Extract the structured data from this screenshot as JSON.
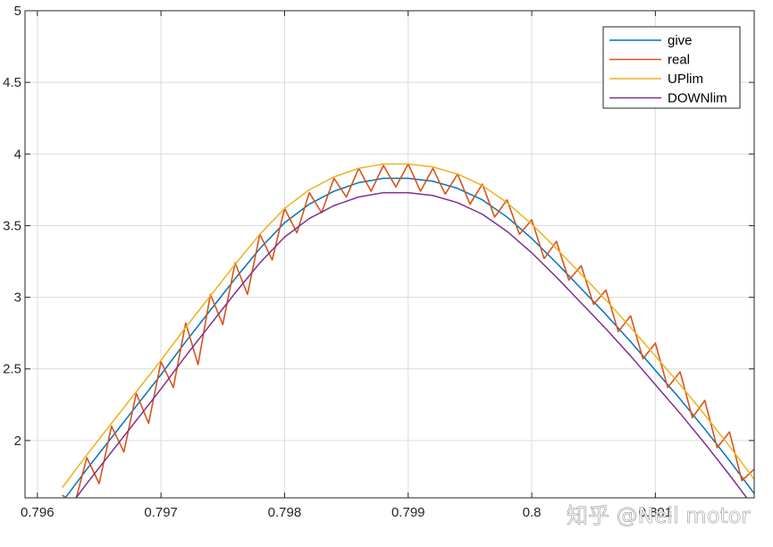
{
  "chart_data": {
    "type": "line",
    "title": "",
    "xlabel": "",
    "ylabel": "",
    "xlim": [
      0.7959,
      0.8018
    ],
    "ylim": [
      1.6,
      5
    ],
    "grid": true,
    "legend_position": "top-right",
    "xticks": [
      0.796,
      0.797,
      0.798,
      0.799,
      0.8,
      0.801
    ],
    "xtick_labels": [
      "0.796",
      "0.797",
      "0.798",
      "0.799",
      "0.8",
      "0.801"
    ],
    "yticks": [
      2,
      2.5,
      3,
      3.5,
      4,
      4.5,
      5
    ],
    "ytick_labels": [
      "2",
      "2.5",
      "3",
      "3.5",
      "4",
      "4.5",
      "5"
    ],
    "series": [
      {
        "name": "give",
        "color": "#0072BD",
        "x": [
          0.7962,
          0.7964,
          0.7966,
          0.7968,
          0.797,
          0.7972,
          0.7974,
          0.7976,
          0.7978,
          0.798,
          0.7982,
          0.7984,
          0.7986,
          0.7988,
          0.799,
          0.7992,
          0.7994,
          0.7996,
          0.7998,
          0.8,
          0.8002,
          0.8004,
          0.8006,
          0.8008,
          0.801,
          0.8012,
          0.8014,
          0.8016,
          0.8018
        ],
        "y": [
          1.57,
          1.8,
          2.02,
          2.24,
          2.46,
          2.69,
          2.91,
          3.13,
          3.34,
          3.52,
          3.65,
          3.74,
          3.8,
          3.83,
          3.83,
          3.81,
          3.76,
          3.68,
          3.56,
          3.41,
          3.24,
          3.06,
          2.88,
          2.69,
          2.49,
          2.29,
          2.08,
          1.86,
          1.63
        ]
      },
      {
        "name": "real",
        "color": "#D95319",
        "x": [
          0.7962,
          0.7963,
          0.7964,
          0.7965,
          0.7966,
          0.7967,
          0.7968,
          0.7969,
          0.797,
          0.7971,
          0.7972,
          0.7973,
          0.7974,
          0.7975,
          0.7976,
          0.7977,
          0.7978,
          0.7979,
          0.798,
          0.7981,
          0.7982,
          0.7983,
          0.7984,
          0.7985,
          0.7986,
          0.7987,
          0.7988,
          0.7989,
          0.799,
          0.7991,
          0.7992,
          0.7993,
          0.7994,
          0.7995,
          0.7996,
          0.7997,
          0.7998,
          0.7999,
          0.8,
          0.8001,
          0.8002,
          0.8003,
          0.8004,
          0.8005,
          0.8006,
          0.8007,
          0.8008,
          0.8009,
          0.801,
          0.8011,
          0.8012,
          0.8013,
          0.8014,
          0.8015,
          0.8016,
          0.8017,
          0.8018
        ],
        "y": [
          1.62,
          1.55,
          1.88,
          1.7,
          2.1,
          1.92,
          2.33,
          2.12,
          2.55,
          2.37,
          2.82,
          2.53,
          3.02,
          2.81,
          3.24,
          3.02,
          3.44,
          3.26,
          3.62,
          3.45,
          3.73,
          3.59,
          3.83,
          3.7,
          3.9,
          3.74,
          3.92,
          3.77,
          3.93,
          3.74,
          3.9,
          3.72,
          3.86,
          3.65,
          3.79,
          3.56,
          3.68,
          3.44,
          3.54,
          3.27,
          3.39,
          3.12,
          3.22,
          2.95,
          3.05,
          2.76,
          2.87,
          2.57,
          2.68,
          2.37,
          2.48,
          2.16,
          2.28,
          1.95,
          2.06,
          1.72,
          1.8
        ]
      },
      {
        "name": "UPlim",
        "color": "#EDB120",
        "x": [
          0.7962,
          0.7964,
          0.7966,
          0.7968,
          0.797,
          0.7972,
          0.7974,
          0.7976,
          0.7978,
          0.798,
          0.7982,
          0.7984,
          0.7986,
          0.7988,
          0.799,
          0.7992,
          0.7994,
          0.7996,
          0.7998,
          0.8,
          0.8002,
          0.8004,
          0.8006,
          0.8008,
          0.801,
          0.8012,
          0.8014,
          0.8016,
          0.8018
        ],
        "y": [
          1.67,
          1.9,
          2.12,
          2.34,
          2.56,
          2.79,
          3.01,
          3.23,
          3.44,
          3.62,
          3.75,
          3.84,
          3.9,
          3.93,
          3.93,
          3.91,
          3.86,
          3.78,
          3.66,
          3.51,
          3.34,
          3.16,
          2.98,
          2.79,
          2.59,
          2.39,
          2.18,
          1.96,
          1.73
        ]
      },
      {
        "name": "DOWNlim",
        "color": "#7E2F8E",
        "x": [
          0.7962,
          0.7964,
          0.7966,
          0.7968,
          0.797,
          0.7972,
          0.7974,
          0.7976,
          0.7978,
          0.798,
          0.7982,
          0.7984,
          0.7986,
          0.7988,
          0.799,
          0.7992,
          0.7994,
          0.7996,
          0.7998,
          0.8,
          0.8002,
          0.8004,
          0.8006,
          0.8008,
          0.801,
          0.8012,
          0.8014,
          0.8016,
          0.8018
        ],
        "y": [
          1.47,
          1.7,
          1.92,
          2.14,
          2.36,
          2.59,
          2.81,
          3.03,
          3.24,
          3.42,
          3.55,
          3.64,
          3.7,
          3.73,
          3.73,
          3.71,
          3.66,
          3.58,
          3.46,
          3.31,
          3.14,
          2.96,
          2.78,
          2.59,
          2.39,
          2.19,
          1.98,
          1.76,
          1.53
        ]
      }
    ]
  },
  "watermark": {
    "text": "知乎 @Neil motor"
  }
}
